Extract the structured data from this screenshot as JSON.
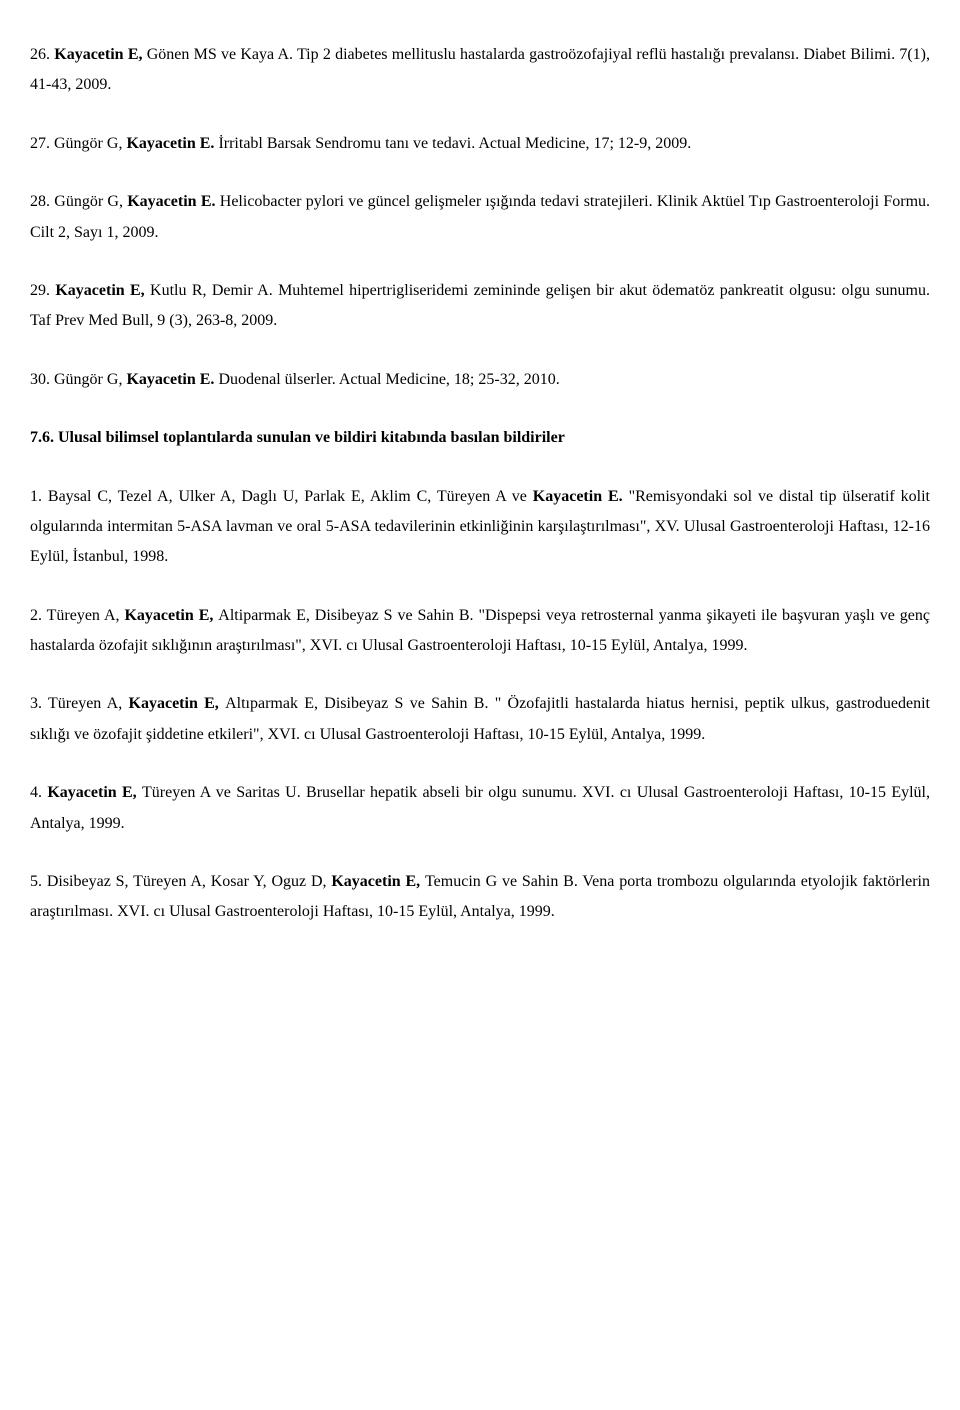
{
  "refs": {
    "r26": {
      "n": "26. ",
      "a_bold": "Kayacetin E, ",
      "a_rest": "Gönen MS ve Kaya A. Tip 2 diabetes mellituslu hastalarda gastroözofajiyal reflü hastalığı prevalansı. Diabet Bilimi. 7(1), 41-43, 2009."
    },
    "r27": {
      "n": "27. Güngör G, ",
      "bold": "Kayacetin E. ",
      "rest": "İrritabl Barsak Sendromu tanı ve tedavi. Actual Medicine, 17; 12-9, 2009."
    },
    "r28": {
      "n": "28. Güngör G, ",
      "bold": "Kayacetin E. ",
      "rest": "Helicobacter pylori ve güncel gelişmeler ışığında tedavi stratejileri. Klinik Aktüel Tıp Gastroenteroloji Formu. Cilt 2, Sayı 1, 2009."
    },
    "r29": {
      "n": "29. ",
      "bold": "Kayacetin E, ",
      "rest": "Kutlu R, Demir A. Muhtemel hipertrigliseridemi zemininde gelişen bir akut ödematöz pankreatit olgusu: olgu  sunumu. Taf Prev Med Bull, 9 (3), 263-8, 2009."
    },
    "r30": {
      "n": "30. Güngör G, ",
      "bold": "Kayacetin E. ",
      "rest": "Duodenal ülserler. Actual Medicine, 18; 25-32, 2010."
    }
  },
  "section": "7.6. Ulusal bilimsel toplantılarda sunulan ve bildiri kitabında basılan bildiriler",
  "pres": {
    "p1": {
      "pre": "1. Baysal C, Tezel A, Ulker A, Daglı U, Parlak E, Aklim C, Türeyen A ve ",
      "bold": "Kayacetin E.",
      "post": " \"Remisyondaki sol ve distal tip ülseratif kolit olgularında intermitan 5-ASA lavman ve oral 5-ASA tedavilerinin etkinliğinin karşılaştırılması\", XV. Ulusal Gastroenteroloji Haftası, 12-16 Eylül, İstanbul, 1998."
    },
    "p2": {
      "pre": "2. Türeyen A, ",
      "bold": "Kayacetin E, ",
      "post": "Altiparmak E, Disibeyaz S ve Sahin B. \"Dispepsi veya retrosternal yanma şikayeti ile başvuran yaşlı ve genç hastalarda özofajit sıklığının araştırılması\", XVI. cı Ulusal Gastroenteroloji Haftası, 10-15 Eylül, Antalya, 1999."
    },
    "p3": {
      "pre": "3. Türeyen A, ",
      "bold": "Kayacetin E, ",
      "post": "Altıparmak E, Disibeyaz S ve Sahin B. \" Özofajitli hastalarda hiatus hernisi, peptik ulkus, gastroduedenit sıklığı ve özofajit şiddetine etkileri\", XVI. cı Ulusal Gastroenteroloji Haftası, 10-15 Eylül, Antalya, 1999."
    },
    "p4": {
      "pre": "4. ",
      "bold": "Kayacetin E, ",
      "post": "Türeyen A ve Saritas U. Brusellar hepatik abseli bir olgu sunumu. XVI. cı Ulusal Gastroenteroloji Haftası, 10-15 Eylül, Antalya, 1999."
    },
    "p5": {
      "pre": "5. Disibeyaz S, Türeyen A, Kosar Y, Oguz D, ",
      "bold": "Kayacetin E, ",
      "post": "Temucin G ve Sahin B. Vena porta trombozu olgularında etyolojik faktörlerin araştırılması. XVI. cı Ulusal Gastroenteroloji Haftası, 10-15 Eylül, Antalya, 1999."
    }
  }
}
